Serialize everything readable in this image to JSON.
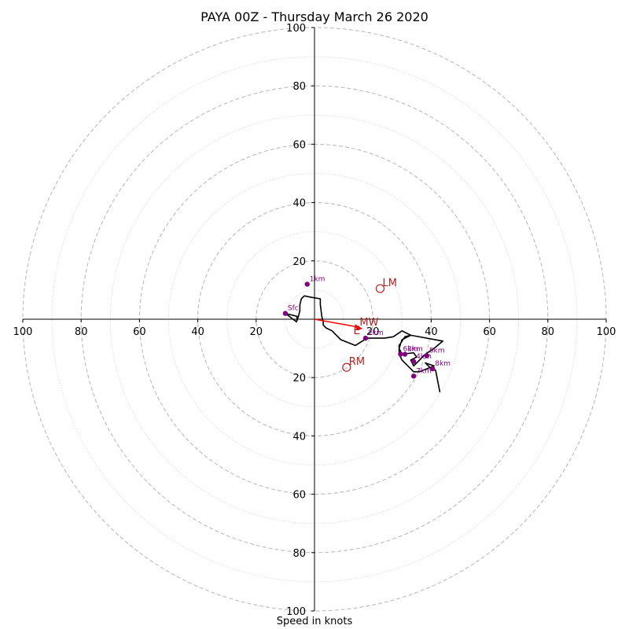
{
  "chart_data": {
    "type": "hodograph",
    "title": "PAYA 00Z - Thursday March 26 2020",
    "xlabel": "Speed in knots",
    "xlim": [
      -100,
      100
    ],
    "ylim": [
      -100,
      100
    ],
    "grid": "dashed every 20 kt, dotted every 10 kt",
    "tick_labels": [
      "100",
      "80",
      "60",
      "40",
      "20"
    ],
    "colors": {
      "axis": "#000000",
      "grid": "#bbbbbb",
      "trace": "#000000",
      "height_markers": "#800080",
      "storm_motion": "#b22222",
      "mean_wind_arrow": "#ff0000"
    },
    "trace": [
      [
        -6,
        -1
      ],
      [
        -10,
        2
      ],
      [
        -6,
        1
      ],
      [
        -6,
        -0.5
      ],
      [
        -5.5,
        1
      ],
      [
        -5,
        3
      ],
      [
        -5,
        5
      ],
      [
        -4.5,
        7
      ],
      [
        -3.5,
        8
      ],
      [
        -1,
        7.5
      ],
      [
        2,
        7
      ],
      [
        2,
        5
      ],
      [
        2.5,
        1
      ],
      [
        3,
        -1
      ],
      [
        3,
        -2
      ],
      [
        4,
        -3
      ],
      [
        6,
        -4
      ],
      [
        9,
        -7
      ],
      [
        14,
        -9
      ],
      [
        18,
        -6.5
      ],
      [
        24,
        -6.5
      ],
      [
        27,
        -6
      ],
      [
        30,
        -4
      ],
      [
        33,
        -5.5
      ],
      [
        32,
        -6
      ],
      [
        31,
        -6.5
      ],
      [
        30,
        -7
      ],
      [
        29,
        -10
      ],
      [
        30,
        -12
      ],
      [
        34,
        -11.5
      ],
      [
        35,
        -13
      ],
      [
        33,
        -14
      ],
      [
        34,
        -16
      ],
      [
        38,
        -12
      ],
      [
        41,
        -10
      ],
      [
        44,
        -7.5
      ],
      [
        33,
        -5.5
      ],
      [
        31,
        -6
      ],
      [
        29,
        -9
      ],
      [
        29,
        -12
      ],
      [
        30,
        -14
      ],
      [
        34,
        -18
      ],
      [
        36,
        -18
      ],
      [
        41,
        -16
      ],
      [
        38,
        -15
      ],
      [
        40,
        -17
      ],
      [
        41.5,
        -17.5
      ],
      [
        43,
        -25
      ]
    ],
    "height_markers": [
      {
        "label": "Sfc",
        "u": -10,
        "v": 2
      },
      {
        "label": "1km",
        "u": -2.5,
        "v": 12
      },
      {
        "label": "2km",
        "u": 17.5,
        "v": -6.5
      },
      {
        "label": "3km",
        "u": 31,
        "v": -12
      },
      {
        "label": "4km",
        "u": 34,
        "v": -14.5
      },
      {
        "label": "5km",
        "u": 38.5,
        "v": -12.5
      },
      {
        "label": "6km",
        "u": 29.5,
        "v": -12
      },
      {
        "label": "7km",
        "u": 34,
        "v": -19.5
      },
      {
        "label": "8km",
        "u": 40.5,
        "v": -17
      }
    ],
    "storm_motion": [
      {
        "label": "LM",
        "u": 22.5,
        "v": 10.5
      },
      {
        "label": "RM",
        "u": 11,
        "v": -16.5
      }
    ],
    "mean_wind": {
      "label": "MW",
      "u": 16,
      "v": -3
    },
    "effective_label": "E"
  }
}
